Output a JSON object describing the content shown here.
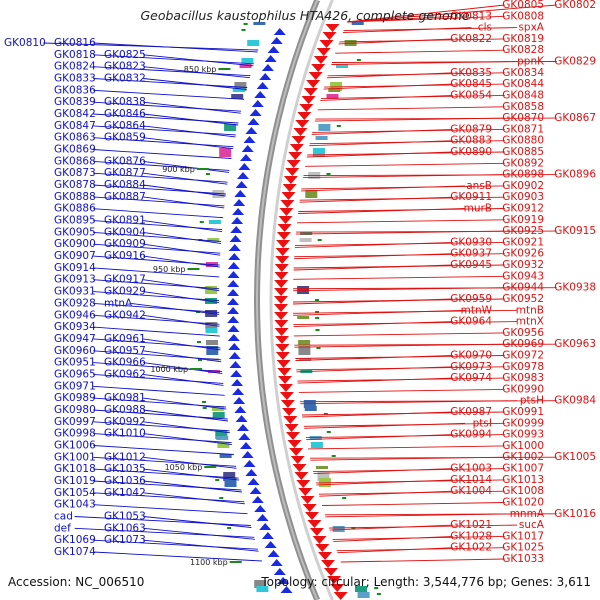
{
  "title": "Geobacillus kaustophilus HTA426, complete genome",
  "footer": {
    "accession": "Accession: NC_006510",
    "summary": "Topology: circular; Length: 3,544,776 bp; Genes: 3,611"
  },
  "colors": {
    "left_labels": "#1010c8",
    "right_labels": "#e01010",
    "left_arrows": "#1a2ae0",
    "right_arrows": "#ee1010",
    "backbone": "#909090",
    "tick": "#1a8a1a"
  },
  "scale_labels": [
    "850 kbp",
    "900 kbp",
    "950 kbp",
    "1000 kbp",
    "1050 kbp",
    "1100 kbp"
  ],
  "left_labels": [
    "GK0810",
    "GK0816",
    "GK0818",
    "GK0825",
    "GK0824",
    "GK0823",
    "GK0833",
    "GK0832",
    "GK0836",
    "GK0839",
    "GK0838",
    "GK0842",
    "GK0846",
    "GK0847",
    "GK0864",
    "GK0863",
    "GK0859",
    "GK0869",
    "GK0868",
    "GK0876",
    "GK0873",
    "GK0877",
    "GK0878",
    "GK0884",
    "GK0888",
    "GK0887",
    "GK0886",
    "GK0895",
    "GK0891",
    "GK0905",
    "GK0904",
    "GK0900",
    "GK0909",
    "GK0907",
    "GK0916",
    "GK0914",
    "GK0913",
    "GK0917",
    "GK0931",
    "GK0929",
    "GK0928",
    "mtnA",
    "GK0946",
    "GK0942",
    "GK0934",
    "GK0947",
    "GK0961",
    "GK0960",
    "GK0957",
    "GK0951",
    "GK0966",
    "GK0965",
    "GK0962",
    "GK0971",
    "GK0989",
    "GK0981",
    "GK0980",
    "GK0988",
    "GK0997",
    "GK0992",
    "GK0998",
    "GK1010",
    "GK1006",
    "GK1001",
    "GK1012",
    "GK1018",
    "GK1035",
    "GK1019",
    "GK1036",
    "GK1054",
    "GK1042",
    "GK1043",
    "cad",
    "GK1053",
    "def",
    "GK1063",
    "GK1069",
    "GK1073",
    "GK1074"
  ],
  "right_labels": [
    "GK0802",
    "GK0805",
    "GK0808",
    "GK0813",
    "spxA",
    "cls",
    "GK0819",
    "GK0822",
    "GK0828",
    "GK0829",
    "ppnK",
    "GK0834",
    "GK0835",
    "GK0844",
    "GK0845",
    "GK0848",
    "GK0854",
    "GK0858",
    "GK0867",
    "GK0870",
    "GK0871",
    "GK0879",
    "GK0880",
    "GK0883",
    "GK0885",
    "GK0890",
    "GK0892",
    "GK0896",
    "GK0898",
    "GK0902",
    "ansB",
    "GK0903",
    "GK0911",
    "GK0912",
    "murB",
    "GK0919",
    "GK0915",
    "GK0925",
    "GK0921",
    "GK0930",
    "GK0926",
    "GK0937",
    "GK0932",
    "GK0945",
    "GK0943",
    "GK0938",
    "GK0944",
    "GK0952",
    "GK0959",
    "mtnB",
    "mtnW",
    "mtnX",
    "GK0964",
    "GK0956",
    "GK0963",
    "GK0969",
    "GK0972",
    "GK0970",
    "GK0978",
    "GK0973",
    "GK0983",
    "GK0974",
    "GK0990",
    "GK0984",
    "ptsH",
    "GK0991",
    "GK0987",
    "GK0999",
    "ptsI",
    "GK0993",
    "GK0994",
    "GK1000",
    "GK1005",
    "GK1002",
    "GK1007",
    "GK1003",
    "GK1013",
    "GK1014",
    "GK1008",
    "GK1004",
    "GK1020",
    "GK1016",
    "mnmA",
    "sucA",
    "GK1021",
    "GK1017",
    "GK1028",
    "GK1025",
    "GK1022",
    "GK1033"
  ]
}
